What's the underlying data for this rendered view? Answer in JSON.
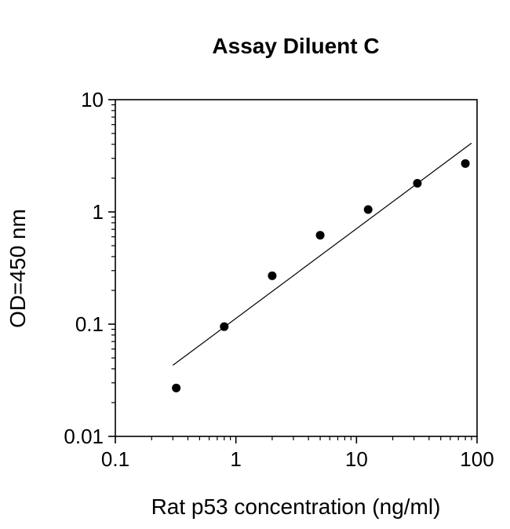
{
  "chart_data": {
    "type": "scatter",
    "title": "Assay Diluent C",
    "xlabel": "Rat p53 concentration (ng/ml)",
    "ylabel": "OD=450 nm",
    "x_scale": "log",
    "y_scale": "log",
    "xlim": [
      0.1,
      100
    ],
    "ylim": [
      0.01,
      10
    ],
    "x_ticks": [
      0.1,
      1,
      10,
      100
    ],
    "x_tick_labels": [
      "0.1",
      "1",
      "10",
      "100"
    ],
    "y_ticks": [
      0.01,
      0.1,
      1,
      10
    ],
    "y_tick_labels": [
      "0.01",
      "0.1",
      "1",
      "10"
    ],
    "grid": false,
    "legend": false,
    "points": [
      {
        "x": 0.32,
        "y": 0.027
      },
      {
        "x": 0.8,
        "y": 0.095
      },
      {
        "x": 2,
        "y": 0.27
      },
      {
        "x": 5,
        "y": 0.62
      },
      {
        "x": 12.5,
        "y": 1.05
      },
      {
        "x": 32,
        "y": 1.8
      },
      {
        "x": 80,
        "y": 2.7
      }
    ],
    "fit_line": {
      "x1": 0.3,
      "y1": 0.043,
      "x2": 90,
      "y2": 4.1
    },
    "marker_color": "#000000",
    "line_color": "#000000",
    "axis_color": "#000000",
    "background": "#ffffff",
    "text_color": "#000000"
  }
}
